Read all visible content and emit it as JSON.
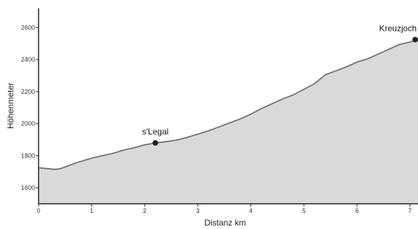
{
  "chart_data": {
    "type": "area",
    "xlabel": "Distanz km",
    "ylabel": "Höhenmeter",
    "xlim": [
      0,
      7.15
    ],
    "ylim": [
      1500,
      2720
    ],
    "x_ticks": [
      "0",
      "1",
      "2",
      "3",
      "4",
      "5",
      "6",
      "7"
    ],
    "y_ticks": [
      "1600",
      "1800",
      "2000",
      "2200",
      "2400",
      "2600"
    ],
    "grid": false,
    "fill_color": "#d9d9d9",
    "line_color": "#707070",
    "marker_color": "#222222",
    "series": [
      {
        "x": [
          0,
          0.15,
          0.3,
          0.4,
          0.5,
          0.7,
          0.9,
          1.0,
          1.2,
          1.4,
          1.6,
          1.8,
          2.0,
          2.2,
          2.4,
          2.6,
          2.8,
          3.0,
          3.2,
          3.4,
          3.6,
          3.8,
          4.0,
          4.2,
          4.4,
          4.6,
          4.8,
          5.0,
          5.2,
          5.4,
          5.6,
          5.8,
          6.0,
          6.2,
          6.4,
          6.6,
          6.8,
          7.0,
          7.15
        ],
        "y": [
          1725,
          1720,
          1715,
          1718,
          1730,
          1755,
          1775,
          1785,
          1800,
          1815,
          1835,
          1850,
          1868,
          1880,
          1888,
          1898,
          1915,
          1935,
          1955,
          1980,
          2005,
          2030,
          2060,
          2095,
          2125,
          2155,
          2180,
          2215,
          2250,
          2305,
          2330,
          2355,
          2385,
          2405,
          2435,
          2465,
          2495,
          2510,
          2525
        ]
      }
    ],
    "annotations": [
      {
        "label": "s'Legal",
        "x": 2.2,
        "y": 1880
      },
      {
        "label": "Kreuzjoch",
        "x": 7.15,
        "y": 2525
      }
    ]
  }
}
